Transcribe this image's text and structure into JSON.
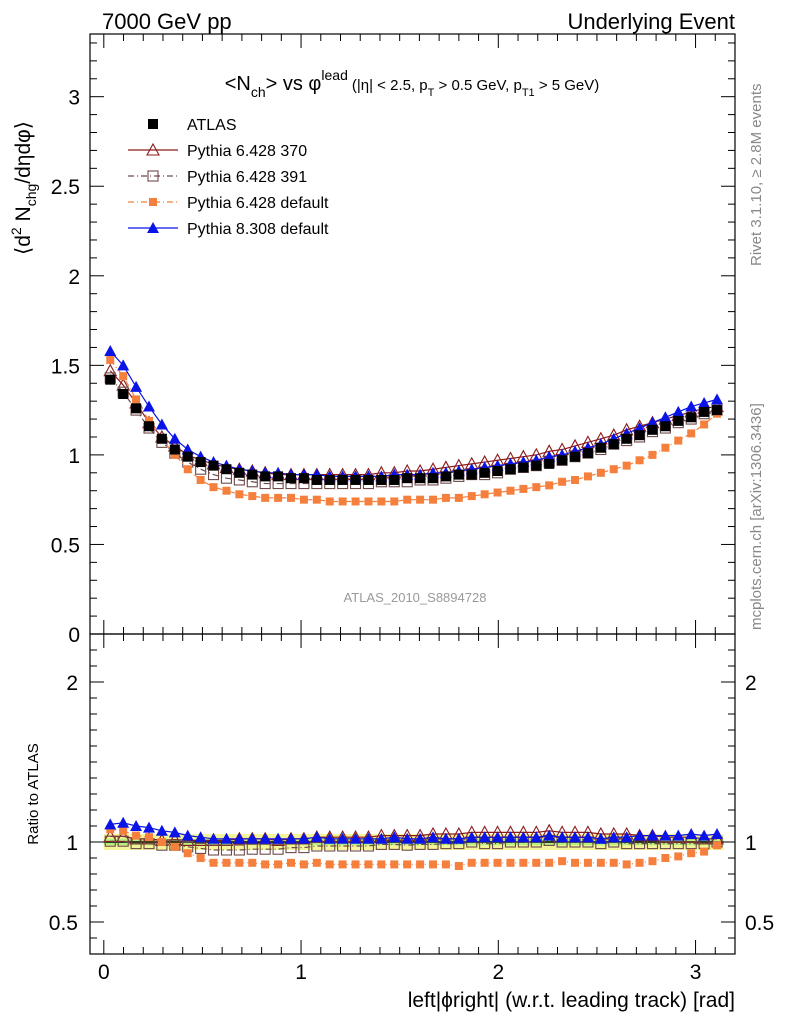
{
  "header": {
    "left": "7000 GeV pp",
    "right": "Underlying Event"
  },
  "side_labels": {
    "rivet": "Rivet 3.1.10, ≥ 2.8M events",
    "mcplots": "mcplots.cern.ch [arXiv:1306.3436]"
  },
  "watermark": "ATLAS_2010_S8894728",
  "colors": {
    "atlas": "#000000",
    "p370": "#8b1a1a",
    "p391": "#6e4a4a",
    "p6def": "#f5803e",
    "p8def": "#0a14e6",
    "band_inner": "#b8ef80",
    "band_outer": "#f4f49a"
  },
  "chart_data": [
    {
      "type": "scatter",
      "title_main": "<N",
      "title_sub": "ch",
      "title_mid": "> vs φ",
      "title_sup": "lead",
      "title_cut": "(|η| < 2.5, p",
      "title_cut_sub1": "T",
      "title_cut2": " > 0.5 GeV, p",
      "title_cut_sub2": "T1",
      "title_cut3": " > 5 GeV)",
      "ylabel_pre": "⟨d",
      "ylabel_sup": "2",
      "ylabel_mid": " N",
      "ylabel_sub": "chg",
      "ylabel_post": "/dηdφ⟩",
      "ylim": [
        0,
        3.35
      ],
      "xlim": [
        -0.07,
        3.2
      ],
      "yticks": [
        "0",
        "0.5",
        "1",
        "1.5",
        "2",
        "2.5",
        "3"
      ],
      "legend_position": "top-left",
      "x": [
        0.0327,
        0.0982,
        0.1636,
        0.2291,
        0.2945,
        0.36,
        0.4254,
        0.4909,
        0.5563,
        0.6218,
        0.6872,
        0.7527,
        0.8181,
        0.8836,
        0.949,
        1.0145,
        1.0799,
        1.1454,
        1.2108,
        1.2763,
        1.3417,
        1.4072,
        1.4726,
        1.5381,
        1.6035,
        1.669,
        1.7344,
        1.7999,
        1.8653,
        1.9308,
        1.9962,
        2.0617,
        2.1271,
        2.1926,
        2.258,
        2.3235,
        2.3889,
        2.4544,
        2.5198,
        2.5853,
        2.6507,
        2.7162,
        2.7816,
        2.8471,
        2.9125,
        2.978,
        3.0434,
        3.1089
      ],
      "series": [
        {
          "name": "ATLAS",
          "marker": "filled-square",
          "values": [
            1.42,
            1.34,
            1.26,
            1.16,
            1.09,
            1.03,
            0.99,
            0.96,
            0.94,
            0.92,
            0.9,
            0.89,
            0.88,
            0.88,
            0.87,
            0.87,
            0.86,
            0.86,
            0.86,
            0.86,
            0.86,
            0.86,
            0.86,
            0.87,
            0.87,
            0.87,
            0.88,
            0.89,
            0.89,
            0.9,
            0.91,
            0.92,
            0.93,
            0.94,
            0.95,
            0.97,
            0.99,
            1.01,
            1.04,
            1.06,
            1.09,
            1.11,
            1.14,
            1.16,
            1.19,
            1.21,
            1.24,
            1.25
          ]
        },
        {
          "name": "Pythia 6.428 370",
          "marker": "open-triangle",
          "values": [
            1.47,
            1.39,
            1.29,
            1.18,
            1.1,
            1.05,
            1.0,
            0.97,
            0.95,
            0.93,
            0.92,
            0.91,
            0.9,
            0.89,
            0.89,
            0.89,
            0.89,
            0.89,
            0.89,
            0.89,
            0.89,
            0.9,
            0.9,
            0.91,
            0.91,
            0.92,
            0.93,
            0.94,
            0.95,
            0.96,
            0.97,
            0.98,
            0.99,
            1.0,
            1.02,
            1.03,
            1.05,
            1.07,
            1.09,
            1.11,
            1.14,
            1.16,
            1.18,
            1.2,
            1.22,
            1.24,
            1.26,
            1.27
          ]
        },
        {
          "name": "Pythia 6.428 391",
          "marker": "open-square",
          "values": [
            1.43,
            1.35,
            1.25,
            1.15,
            1.07,
            1.01,
            0.96,
            0.92,
            0.89,
            0.87,
            0.86,
            0.85,
            0.84,
            0.84,
            0.84,
            0.84,
            0.84,
            0.84,
            0.84,
            0.84,
            0.84,
            0.85,
            0.85,
            0.85,
            0.86,
            0.86,
            0.87,
            0.88,
            0.89,
            0.89,
            0.9,
            0.92,
            0.93,
            0.94,
            0.96,
            0.97,
            0.99,
            1.01,
            1.03,
            1.06,
            1.08,
            1.1,
            1.13,
            1.15,
            1.18,
            1.2,
            1.23,
            1.25
          ]
        },
        {
          "name": "Pythia 6.428 default",
          "marker": "filled-square-small",
          "values": [
            1.53,
            1.44,
            1.31,
            1.19,
            1.09,
            1.0,
            0.92,
            0.86,
            0.82,
            0.8,
            0.78,
            0.77,
            0.76,
            0.76,
            0.76,
            0.75,
            0.75,
            0.74,
            0.74,
            0.74,
            0.74,
            0.74,
            0.74,
            0.75,
            0.75,
            0.75,
            0.76,
            0.76,
            0.77,
            0.78,
            0.79,
            0.8,
            0.81,
            0.82,
            0.83,
            0.85,
            0.86,
            0.88,
            0.9,
            0.92,
            0.94,
            0.97,
            1.0,
            1.04,
            1.08,
            1.12,
            1.17,
            1.23
          ]
        },
        {
          "name": "Pythia 8.308 default",
          "marker": "filled-triangle",
          "values": [
            1.58,
            1.5,
            1.38,
            1.27,
            1.17,
            1.09,
            1.03,
            0.99,
            0.96,
            0.94,
            0.92,
            0.91,
            0.9,
            0.9,
            0.89,
            0.89,
            0.89,
            0.88,
            0.88,
            0.88,
            0.88,
            0.88,
            0.89,
            0.89,
            0.89,
            0.9,
            0.9,
            0.91,
            0.92,
            0.93,
            0.94,
            0.95,
            0.96,
            0.97,
            0.99,
            1.0,
            1.02,
            1.04,
            1.06,
            1.09,
            1.12,
            1.15,
            1.18,
            1.21,
            1.24,
            1.27,
            1.29,
            1.31
          ]
        }
      ]
    },
    {
      "type": "scatter",
      "ylabel": "Ratio to ATLAS",
      "xlabel": "left|ϕright| (w.r.t. leading track) [rad]",
      "ylim": [
        0.3,
        2.3
      ],
      "xlim": [
        -0.07,
        3.2
      ],
      "yticks": [
        "0.5",
        "1",
        "2"
      ],
      "xticks": [
        "0",
        "1",
        "2",
        "3"
      ],
      "x": [
        0.0327,
        0.0982,
        0.1636,
        0.2291,
        0.2945,
        0.36,
        0.4254,
        0.4909,
        0.5563,
        0.6218,
        0.6872,
        0.7527,
        0.8181,
        0.8836,
        0.949,
        1.0145,
        1.0799,
        1.1454,
        1.2108,
        1.2763,
        1.3417,
        1.4072,
        1.4726,
        1.5381,
        1.6035,
        1.669,
        1.7344,
        1.7999,
        1.8653,
        1.9308,
        1.9962,
        2.0617,
        2.1271,
        2.1926,
        2.258,
        2.3235,
        2.3889,
        2.4544,
        2.5198,
        2.5853,
        2.6507,
        2.7162,
        2.7816,
        2.8471,
        2.9125,
        2.978,
        3.0434,
        3.1089
      ],
      "band_inner": 0.02,
      "band_outer": 0.05,
      "series": [
        {
          "name": "Pythia 6.428 370",
          "values": [
            1.035,
            1.035,
            1.02,
            1.02,
            1.01,
            1.015,
            1.01,
            1.01,
            1.01,
            1.01,
            1.02,
            1.02,
            1.02,
            1.01,
            1.02,
            1.02,
            1.03,
            1.03,
            1.03,
            1.03,
            1.03,
            1.04,
            1.04,
            1.04,
            1.04,
            1.05,
            1.05,
            1.05,
            1.06,
            1.06,
            1.06,
            1.06,
            1.06,
            1.06,
            1.07,
            1.06,
            1.06,
            1.06,
            1.05,
            1.05,
            1.05,
            1.04,
            1.04,
            1.03,
            1.03,
            1.03,
            1.02,
            1.02
          ]
        },
        {
          "name": "Pythia 6.428 391",
          "values": [
            1.005,
            1.005,
            0.99,
            0.99,
            0.98,
            0.98,
            0.97,
            0.96,
            0.95,
            0.95,
            0.95,
            0.955,
            0.955,
            0.955,
            0.965,
            0.965,
            0.975,
            0.975,
            0.975,
            0.975,
            0.975,
            0.985,
            0.985,
            0.98,
            0.985,
            0.985,
            0.99,
            0.99,
            1.0,
            0.99,
            0.99,
            1.0,
            1.0,
            1.0,
            1.01,
            1.0,
            1.0,
            1.0,
            0.99,
            1.0,
            0.99,
            0.99,
            0.99,
            0.99,
            0.99,
            0.99,
            0.99,
            1.0
          ]
        },
        {
          "name": "Pythia 6.428 default",
          "values": [
            1.08,
            1.07,
            1.04,
            1.03,
            1.0,
            0.97,
            0.93,
            0.9,
            0.87,
            0.87,
            0.87,
            0.87,
            0.86,
            0.86,
            0.87,
            0.86,
            0.87,
            0.86,
            0.86,
            0.86,
            0.86,
            0.86,
            0.86,
            0.86,
            0.86,
            0.86,
            0.86,
            0.85,
            0.87,
            0.87,
            0.87,
            0.87,
            0.87,
            0.87,
            0.87,
            0.88,
            0.87,
            0.87,
            0.87,
            0.87,
            0.86,
            0.87,
            0.88,
            0.9,
            0.91,
            0.93,
            0.94,
            0.98
          ]
        },
        {
          "name": "Pythia 8.308 default",
          "values": [
            1.11,
            1.12,
            1.1,
            1.09,
            1.07,
            1.06,
            1.04,
            1.03,
            1.02,
            1.02,
            1.02,
            1.02,
            1.02,
            1.02,
            1.02,
            1.02,
            1.03,
            1.02,
            1.02,
            1.02,
            1.02,
            1.02,
            1.03,
            1.02,
            1.02,
            1.03,
            1.02,
            1.02,
            1.03,
            1.03,
            1.03,
            1.03,
            1.03,
            1.03,
            1.04,
            1.03,
            1.03,
            1.03,
            1.02,
            1.03,
            1.03,
            1.04,
            1.04,
            1.04,
            1.04,
            1.05,
            1.04,
            1.05
          ]
        }
      ]
    }
  ]
}
